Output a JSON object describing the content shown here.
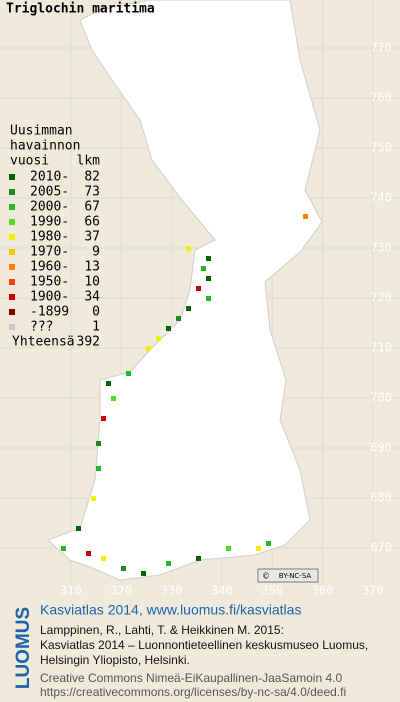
{
  "title": "Triglochin maritima",
  "legend": {
    "heading": [
      "Uusimman",
      "havainnon",
      "vuosi"
    ],
    "count_heading": "lkm",
    "items": [
      {
        "label": "2010-",
        "count": 82,
        "color": "#006400"
      },
      {
        "label": "2005-",
        "count": 73,
        "color": "#1f8a1f"
      },
      {
        "label": "2000-",
        "count": 67,
        "color": "#22b822"
      },
      {
        "label": "1990-",
        "count": 66,
        "color": "#55dd22"
      },
      {
        "label": "1980-",
        "count": 37,
        "color": "#f0f000"
      },
      {
        "label": "1970-",
        "count": 9,
        "color": "#f5c800"
      },
      {
        "label": "1960-",
        "count": 13,
        "color": "#ff8000"
      },
      {
        "label": "1950-",
        "count": 10,
        "color": "#ff4000"
      },
      {
        "label": "1900-",
        "count": 34,
        "color": "#cc0000"
      },
      {
        "label": "-1899",
        "count": 0,
        "color": "#800000"
      },
      {
        "label": "???",
        "count": 1,
        "color": "#c8c8c8"
      }
    ],
    "total_label": "Yhteensä",
    "total": 392
  },
  "grid": {
    "north": [
      770,
      760,
      750,
      740,
      730,
      720,
      710,
      700,
      690,
      680,
      670
    ],
    "east": [
      310,
      320,
      330,
      340,
      350,
      360,
      370
    ]
  },
  "footer": {
    "logo": "LUOMUS",
    "site": "Kasviatlas 2014, www.luomus.fi/kasviatlas",
    "citation": [
      "Lamppinen, R., Lahti, T. & Heikkinen M. 2015:",
      "Kasviatlas 2014 – Luonnontieteellinen keskusmuseo Luomus,",
      "Helsingin Yliopisto, Helsinki."
    ],
    "license": [
      "Creative Commons Nimeä-EiKaupallinen-JaaSamoin 4.0",
      "https://creativecommons.org/licenses/by-nc-sa/4.0/deed.fi"
    ],
    "badge": "BY-NC-SA"
  }
}
